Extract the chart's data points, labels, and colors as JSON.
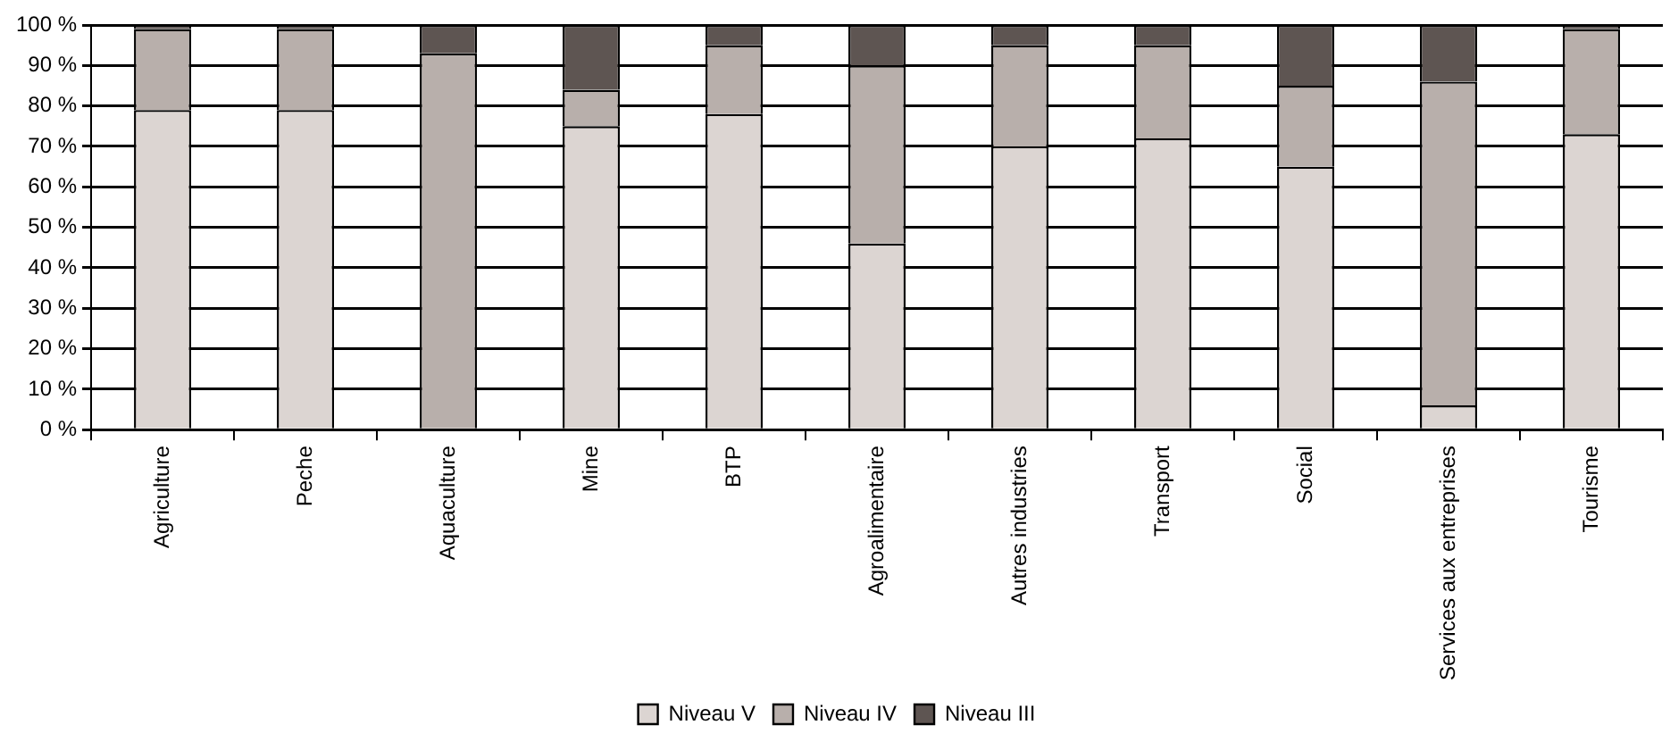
{
  "chart_data": {
    "type": "bar",
    "stacked": true,
    "categories": [
      "Agriculture",
      "Peche",
      "Aquaculture",
      "Mine",
      "BTP",
      "Agroalimentaire",
      "Autres industries",
      "Transport",
      "Social",
      "Services aux entreprises",
      "Tourisme"
    ],
    "series": [
      {
        "name": "Niveau V",
        "color": "#dcd5d2",
        "values": [
          79,
          79,
          0,
          75,
          78,
          46,
          70,
          72,
          65,
          6,
          73
        ]
      },
      {
        "name": "Niveau IV",
        "color": "#b8afab",
        "values": [
          20,
          20,
          93,
          9,
          17,
          44,
          25,
          23,
          20,
          80,
          26
        ]
      },
      {
        "name": "Niveau III",
        "color": "#5e5552",
        "values": [
          1,
          1,
          7,
          16,
          5,
          10,
          5,
          5,
          15,
          14,
          1
        ]
      }
    ],
    "ylim": [
      0,
      100
    ],
    "yticks": [
      {
        "value": 0,
        "label": "0 %"
      },
      {
        "value": 10,
        "label": "10 %"
      },
      {
        "value": 20,
        "label": "20 %"
      },
      {
        "value": 30,
        "label": "30 %"
      },
      {
        "value": 40,
        "label": "40 %"
      },
      {
        "value": 50,
        "label": "50 %"
      },
      {
        "value": 60,
        "label": "60 %"
      },
      {
        "value": 70,
        "label": "70 %"
      },
      {
        "value": 80,
        "label": "80 %"
      },
      {
        "value": 90,
        "label": "90 %"
      },
      {
        "value": 100,
        "label": "100 %"
      }
    ],
    "grid": "y",
    "legend": "bottom"
  }
}
